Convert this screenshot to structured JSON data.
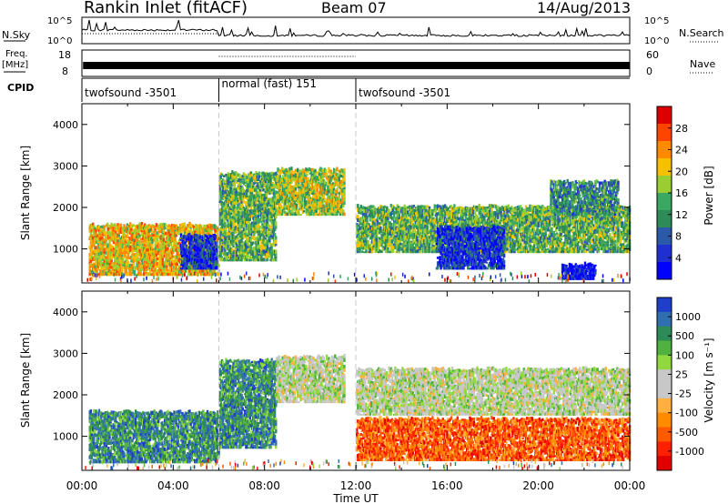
{
  "header": {
    "station": "Rankin Inlet (fitACF)",
    "beam": "Beam 07",
    "date": "14/Aug/2013"
  },
  "panels": {
    "nsky": {
      "left_label": "N.Sky",
      "left_ticks": [
        "10^5",
        "10^0"
      ],
      "right_label": "N.Search",
      "right_ticks": [
        "10^5",
        "10^0"
      ]
    },
    "freq": {
      "left_label_line1": "Freq.",
      "left_label_line2": "[MHz]",
      "left_ticks": [
        "18",
        "8"
      ],
      "right_label": "Nave",
      "right_ticks": [
        "60",
        "0"
      ]
    },
    "cpid": {
      "label": "CPID",
      "segments": [
        {
          "label": "twofsound -3501",
          "start_h": 0,
          "end_h": 6
        },
        {
          "label": "normal (fast) 151",
          "start_h": 6,
          "end_h": 12
        },
        {
          "label": "twofsound -3501",
          "start_h": 12,
          "end_h": 24
        }
      ]
    }
  },
  "colorbars": {
    "power": {
      "label": "Power [dB]",
      "ticks": [
        "28",
        "24",
        "20",
        "16",
        "12",
        "8",
        "4"
      ],
      "colors": [
        "#dd0000",
        "#ff4400",
        "#ff8a00",
        "#f5c000",
        "#9acd32",
        "#3aa860",
        "#2e8b57",
        "#2a5aa8",
        "#1f2fd0",
        "#0000ff"
      ]
    },
    "velocity": {
      "label": "Velocity [m s⁻¹]",
      "ticks": [
        "1000",
        "500",
        "100",
        "25",
        "-25",
        "-100",
        "-500",
        "-1000"
      ],
      "colors": [
        "#1f3fc8",
        "#2f6fb0",
        "#2e8b57",
        "#50b040",
        "#90d840",
        "#c8c8c8",
        "#c8c8c8",
        "#ffb040",
        "#ff8c00",
        "#ff5a00",
        "#ff2000",
        "#e00000"
      ]
    }
  },
  "chart_data": [
    {
      "type": "heatmap",
      "title": "",
      "ylabel": "Slant Range [km]",
      "xlabel": "",
      "xlim": [
        0,
        24
      ],
      "ylim": [
        180,
        4500
      ],
      "yticks": [
        "4000",
        "3000",
        "2000",
        "1000"
      ],
      "ytick_values": [
        4000,
        3000,
        2000,
        1000
      ],
      "colorbar": "Power [dB]",
      "echo_regions": [
        {
          "t0": 0.3,
          "t1": 6.0,
          "r0": 350,
          "r1": 1560,
          "level": 3
        },
        {
          "t0": 4.3,
          "t1": 5.9,
          "r0": 500,
          "r1": 1300,
          "level": 8
        },
        {
          "t0": 6.0,
          "t1": 8.5,
          "r0": 700,
          "r1": 2800,
          "level": 5
        },
        {
          "t0": 8.5,
          "t1": 11.5,
          "r0": 1800,
          "r1": 2900,
          "level": 4
        },
        {
          "t0": 12.0,
          "t1": 24.0,
          "r0": 900,
          "r1": 2000,
          "level": 5
        },
        {
          "t0": 15.5,
          "t1": 18.5,
          "r0": 500,
          "r1": 1500,
          "level": 8
        },
        {
          "t0": 20.5,
          "t1": 23.5,
          "r0": 1800,
          "r1": 2600,
          "level": 6
        },
        {
          "t0": 21.0,
          "t1": 22.5,
          "r0": 250,
          "r1": 600,
          "level": 9
        }
      ]
    },
    {
      "type": "heatmap",
      "title": "",
      "ylabel": "Slant Range [km]",
      "xlabel": "Time UT",
      "xlim": [
        0,
        24
      ],
      "ylim": [
        180,
        4500
      ],
      "xticks": [
        "00:00",
        "04:00",
        "08:00",
        "12:00",
        "16:00",
        "20:00",
        "00:00"
      ],
      "xtick_values": [
        0,
        4,
        8,
        12,
        16,
        20,
        24
      ],
      "yticks": [
        "4000",
        "3000",
        "2000",
        "1000"
      ],
      "ytick_values": [
        4000,
        3000,
        2000,
        1000
      ],
      "colorbar": "Velocity [m s⁻¹]",
      "echo_regions": [
        {
          "t0": 0.3,
          "t1": 6.0,
          "r0": 350,
          "r1": 1560,
          "level": 2
        },
        {
          "t0": 6.0,
          "t1": 8.5,
          "r0": 700,
          "r1": 2800,
          "level": 2
        },
        {
          "t0": 8.5,
          "t1": 11.5,
          "r0": 1800,
          "r1": 2900,
          "level": 5
        },
        {
          "t0": 12.0,
          "t1": 24.0,
          "r0": 1500,
          "r1": 2600,
          "level": 5
        },
        {
          "t0": 12.0,
          "t1": 24.0,
          "r0": 400,
          "r1": 1400,
          "level": 9
        }
      ]
    }
  ]
}
